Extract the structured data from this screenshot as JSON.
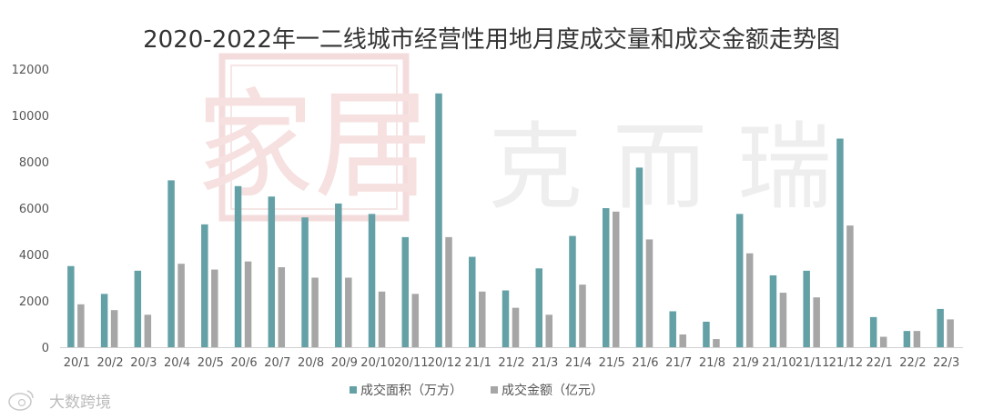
{
  "chart_data": {
    "type": "bar",
    "title": "2020-2022年一二线城市经营性用地月度成交量和成交金额走势图",
    "categories": [
      "20/1",
      "20/2",
      "20/3",
      "20/4",
      "20/5",
      "20/6",
      "20/7",
      "20/8",
      "20/9",
      "20/10",
      "20/11",
      "20/12",
      "21/1",
      "21/2",
      "21/3",
      "21/4",
      "21/5",
      "21/6",
      "21/7",
      "21/8",
      "21/9",
      "21/10",
      "21/11",
      "21/12",
      "22/1",
      "22/2",
      "22/3"
    ],
    "series": [
      {
        "name": "成交面积（万方）",
        "color": "#64a1a6",
        "values": [
          3500,
          2300,
          3300,
          7200,
          5300,
          6950,
          6500,
          5600,
          6200,
          5750,
          4750,
          10950,
          3900,
          2450,
          3400,
          4800,
          6000,
          7750,
          1550,
          1100,
          5750,
          3100,
          3300,
          9000,
          1300,
          700,
          1650
        ]
      },
      {
        "name": "成交金额（亿元）",
        "color": "#a6a6a6",
        "values": [
          1850,
          1600,
          1400,
          3600,
          3350,
          3700,
          3450,
          3000,
          3000,
          2400,
          2300,
          4750,
          2400,
          1700,
          1400,
          2700,
          5850,
          4650,
          550,
          350,
          4050,
          2350,
          2150,
          5250,
          450,
          700,
          1200
        ]
      }
    ],
    "yticks": [
      "0",
      "2000",
      "4000",
      "6000",
      "8000",
      "10000",
      "12000"
    ],
    "ylim": [
      0,
      12000
    ],
    "grid": false,
    "legend": "bottom-center"
  },
  "watermark": {
    "seal_icon": "seal-stamp-icon",
    "text": "克 而 瑞",
    "seal_color": "#f3dede",
    "text_color": "#eeeeee"
  },
  "credit": {
    "icon": "weibo-logo-icon",
    "text": "大数跨境"
  }
}
